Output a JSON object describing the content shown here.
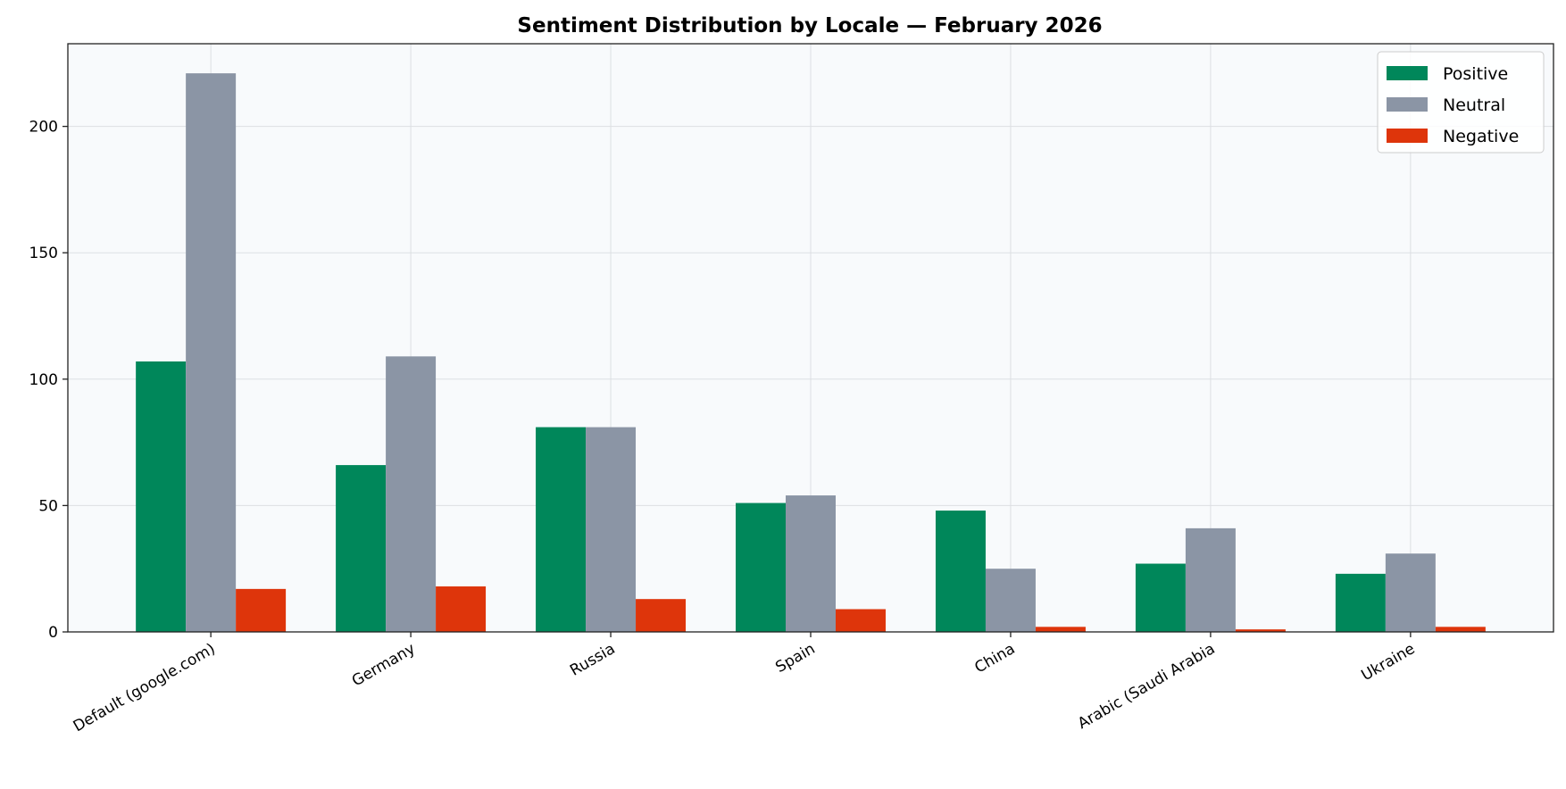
{
  "chart_data": {
    "type": "bar",
    "title": "Sentiment Distribution by Locale — February 2026",
    "xlabel": "",
    "ylabel": "",
    "categories": [
      "Default (google.com)",
      "Germany",
      "Russia",
      "Spain",
      "China",
      "Arabic (Saudi Arabia",
      "Ukraine"
    ],
    "series": [
      {
        "name": "Positive",
        "color": "#00875a",
        "values": [
          107,
          66,
          81,
          51,
          48,
          27,
          23
        ]
      },
      {
        "name": "Neutral",
        "color": "#8b95a5",
        "values": [
          221,
          109,
          81,
          54,
          25,
          41,
          31
        ]
      },
      {
        "name": "Negative",
        "color": "#de350b",
        "values": [
          17,
          18,
          13,
          9,
          2,
          1,
          2
        ]
      }
    ],
    "ylim": [
      0,
      232.7
    ],
    "yticks": [
      0,
      50,
      100,
      150,
      200
    ],
    "grid": true,
    "legend": "top-right",
    "plot_background": "#f8fafc"
  }
}
